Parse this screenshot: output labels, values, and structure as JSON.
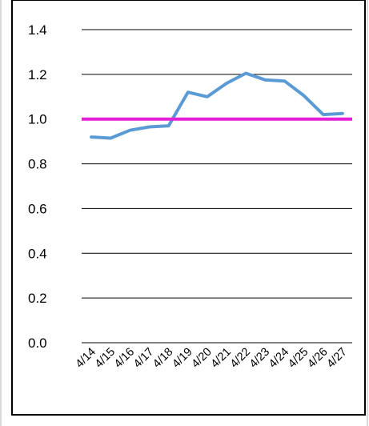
{
  "chart_data": {
    "type": "line",
    "title": "",
    "xlabel": "",
    "ylabel": "",
    "categories": [
      "4/14",
      "4/15",
      "4/16",
      "4/17",
      "4/18",
      "4/19",
      "4/20",
      "4/21",
      "4/22",
      "4/23",
      "4/24",
      "4/25",
      "4/26",
      "4/27"
    ],
    "series": [
      {
        "color": "#5b9bd5",
        "values": [
          0.92,
          0.915,
          0.95,
          0.965,
          0.97,
          1.12,
          1.1,
          1.16,
          1.205,
          1.175,
          1.17,
          1.105,
          1.02,
          1.025
        ]
      }
    ],
    "reference_line": {
      "value": 1.0,
      "color": "#e620d6"
    },
    "ylim": [
      0.0,
      1.4
    ],
    "yticks": [
      0.0,
      0.2,
      0.4,
      0.6,
      0.8,
      1.0,
      1.2,
      1.4
    ],
    "ytick_labels": [
      "0.0",
      "0.2",
      "0.4",
      "0.6",
      "0.8",
      "1.0",
      "1.2",
      "1.4"
    ],
    "grid": true,
    "legend": "none"
  },
  "colors": {
    "frame_border": "#000000",
    "gridline": "#000000",
    "page_edge": "#d9d9d9"
  }
}
